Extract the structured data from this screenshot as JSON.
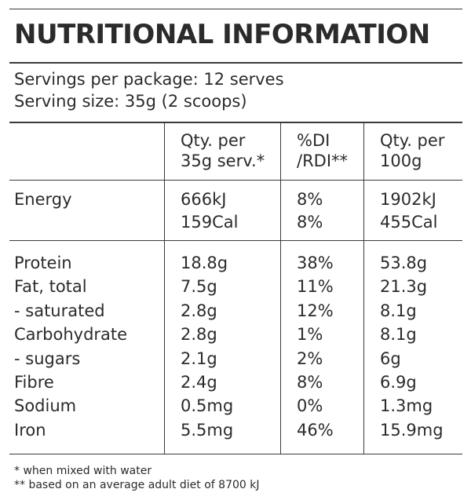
{
  "title": "NUTRITIONAL INFORMATION",
  "servings": {
    "per_package": "Servings per package: 12 serves",
    "serving_size": "Serving size: 35g (2 scoops)"
  },
  "headers": {
    "col1_line1": "Qty. per",
    "col1_line2": "35g serv.*",
    "col2_line1": "%DI",
    "col2_line2": "/RDI**",
    "col3_line1": "Qty. per",
    "col3_line2": "100g"
  },
  "energy": {
    "label": "Energy",
    "kj": [
      "666kJ",
      "8%",
      "1902kJ"
    ],
    "cal": [
      "159Cal",
      "8%",
      "455Cal"
    ]
  },
  "nutrients": [
    {
      "label": "Protein",
      "serv": "18.8g",
      "rdi": "38%",
      "per100": "53.8g"
    },
    {
      "label": "Fat, total",
      "serv": "7.5g",
      "rdi": "11%",
      "per100": "21.3g"
    },
    {
      "label": "- saturated",
      "serv": "2.8g",
      "rdi": "12%",
      "per100": "8.1g"
    },
    {
      "label": "Carbohydrate",
      "serv": "2.8g",
      "rdi": "1%",
      "per100": "8.1g"
    },
    {
      "label": "- sugars",
      "serv": "2.1g",
      "rdi": "2%",
      "per100": "6g"
    },
    {
      "label": "Fibre",
      "serv": "2.4g",
      "rdi": "8%",
      "per100": "6.9g"
    },
    {
      "label": "Sodium",
      "serv": "0.5mg",
      "rdi": "0%",
      "per100": "1.3mg"
    },
    {
      "label": "Iron",
      "serv": "5.5mg",
      "rdi": "46%",
      "per100": "15.9mg"
    }
  ],
  "footnotes": {
    "note1": "*  when mixed with water",
    "note2": "** based on an average adult diet of 8700 kJ"
  }
}
